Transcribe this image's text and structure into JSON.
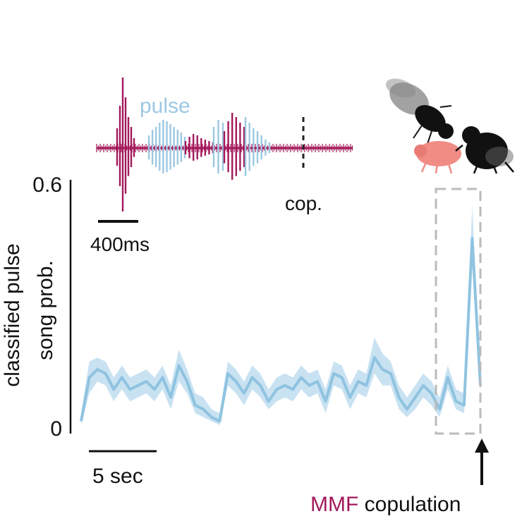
{
  "chart_data": {
    "type": "line",
    "ylabel_line1": "classified pulse",
    "ylabel_line2": "song prob.",
    "ylim": [
      0,
      0.6
    ],
    "yticks": [
      "0",
      "0.6"
    ],
    "time_scalebar_label": "5 sec",
    "series": [
      {
        "color": "#8fc3e0",
        "band_color": "#c8e2f2",
        "values": [
          0.01,
          0.12,
          0.14,
          0.13,
          0.09,
          0.12,
          0.09,
          0.1,
          0.11,
          0.09,
          0.12,
          0.07,
          0.15,
          0.11,
          0.05,
          0.04,
          0.02,
          0.01,
          0.13,
          0.11,
          0.08,
          0.12,
          0.1,
          0.06,
          0.09,
          0.1,
          0.09,
          0.12,
          0.1,
          0.11,
          0.06,
          0.13,
          0.12,
          0.07,
          0.11,
          0.1,
          0.17,
          0.14,
          0.13,
          0.07,
          0.04,
          0.07,
          0.1,
          0.08,
          0.04,
          0.12,
          0.06,
          0.05,
          0.47,
          0.1
        ],
        "lower": [
          0.0,
          0.08,
          0.11,
          0.1,
          0.06,
          0.09,
          0.06,
          0.07,
          0.08,
          0.06,
          0.09,
          0.04,
          0.11,
          0.08,
          0.03,
          0.02,
          0.01,
          0.0,
          0.1,
          0.08,
          0.05,
          0.09,
          0.07,
          0.04,
          0.06,
          0.07,
          0.06,
          0.09,
          0.07,
          0.08,
          0.03,
          0.1,
          0.09,
          0.04,
          0.08,
          0.07,
          0.13,
          0.1,
          0.1,
          0.04,
          0.02,
          0.04,
          0.07,
          0.05,
          0.02,
          0.09,
          0.04,
          0.03,
          0.4,
          0.08
        ],
        "upper": [
          0.03,
          0.16,
          0.17,
          0.16,
          0.12,
          0.15,
          0.12,
          0.13,
          0.14,
          0.12,
          0.15,
          0.1,
          0.19,
          0.14,
          0.08,
          0.07,
          0.04,
          0.03,
          0.16,
          0.14,
          0.11,
          0.15,
          0.13,
          0.09,
          0.12,
          0.13,
          0.12,
          0.15,
          0.13,
          0.14,
          0.09,
          0.16,
          0.15,
          0.1,
          0.14,
          0.13,
          0.22,
          0.18,
          0.16,
          0.1,
          0.07,
          0.1,
          0.13,
          0.11,
          0.07,
          0.15,
          0.09,
          0.08,
          0.55,
          0.13
        ]
      }
    ],
    "annotation": {
      "mmf": "MMF",
      "copulation": "copulation",
      "mmf_color": "#a3195b"
    }
  },
  "inset": {
    "pulse_label": "pulse",
    "pulse_color": "#9cc8e2",
    "sine_color": "#a3195b",
    "cop_label": "cop.",
    "scalebar_label": "400ms"
  },
  "flies": {
    "female_color": "#f08c84",
    "male_color": "#111111"
  }
}
